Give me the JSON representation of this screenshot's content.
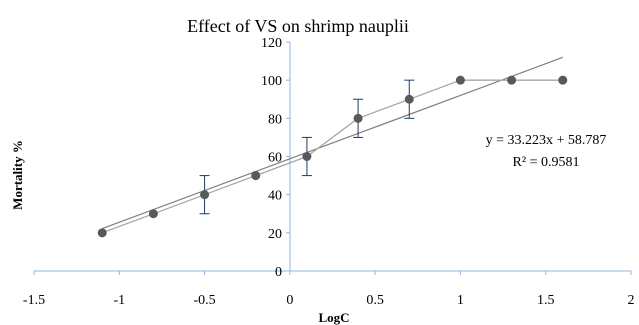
{
  "chart_data": {
    "type": "line",
    "title": "Effect of VS on shrimp nauplii",
    "xlabel": "LogC",
    "ylabel": "Mortality %",
    "xlim": [
      -1.5,
      2
    ],
    "ylim": [
      0,
      120
    ],
    "x_ticks": [
      -1.5,
      -1,
      -0.5,
      0,
      0.5,
      1,
      1.5,
      2
    ],
    "x_tick_labels": [
      "-1.5",
      "-1",
      "-0.5",
      "0",
      "0.5",
      "1",
      "1.5",
      "2"
    ],
    "y_ticks": [
      0,
      20,
      40,
      60,
      80,
      100,
      120
    ],
    "y_tick_labels": [
      "0",
      "20",
      "40",
      "60",
      "80",
      "100",
      "120"
    ],
    "grid": false,
    "legend": "none",
    "series": [
      {
        "x": [
          -1.1,
          -0.8,
          -0.5,
          -0.2,
          0.1,
          0.4,
          0.7,
          1.0,
          1.3,
          1.6
        ],
        "y": [
          20,
          30,
          40,
          50,
          60,
          80,
          90,
          100,
          100,
          100
        ],
        "error": [
          0,
          0,
          10,
          0,
          10,
          10,
          10,
          0,
          0,
          0
        ]
      }
    ],
    "trendline": {
      "slope": 33.223,
      "intercept": 58.787,
      "x_range": [
        -1.1,
        1.6
      ]
    },
    "annotations": [
      {
        "text": "y = 33.223x + 58.787"
      },
      {
        "text": "R² = 0.9581"
      }
    ],
    "colors": {
      "axis": "#8eb4e3",
      "data_line": "#a6a6a6",
      "marker": "#595959",
      "trendline": "#7f7f7f",
      "error_bar": "#1f3b64"
    }
  }
}
